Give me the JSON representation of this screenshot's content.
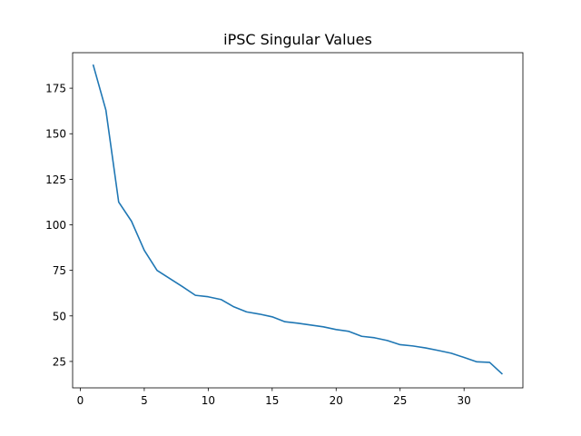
{
  "chart_data": {
    "type": "line",
    "title": "iPSC Singular Values",
    "xlabel": "",
    "ylabel": "",
    "xlim": [
      -0.6,
      34.6
    ],
    "ylim": [
      10.5,
      194.5
    ],
    "x_ticks": [
      0,
      5,
      10,
      15,
      20,
      25,
      30
    ],
    "y_ticks": [
      25,
      50,
      75,
      100,
      125,
      150,
      175
    ],
    "grid": false,
    "series_color": "#1f77b4",
    "x": [
      1,
      2,
      3,
      4,
      5,
      6,
      7,
      8,
      9,
      10,
      11,
      12,
      13,
      14,
      15,
      16,
      17,
      18,
      19,
      20,
      21,
      22,
      23,
      24,
      25,
      26,
      27,
      28,
      29,
      30,
      31,
      32,
      33
    ],
    "values": [
      188,
      163,
      112.5,
      102,
      86,
      75,
      70.5,
      66,
      61.3,
      60.5,
      59,
      55,
      52.2,
      51,
      49.5,
      46.8,
      46,
      45,
      44,
      42.5,
      41.5,
      38.8,
      38,
      36.5,
      34.2,
      33.5,
      32.4,
      31,
      29.5,
      27.2,
      24.8,
      24.5,
      18
    ]
  }
}
